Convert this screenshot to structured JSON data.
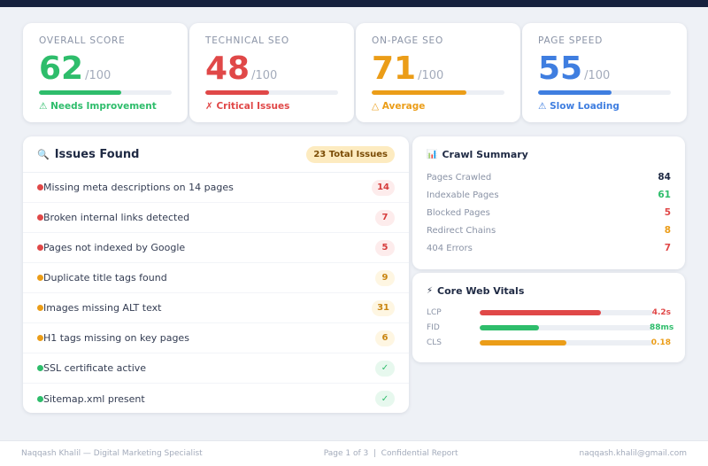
{
  "scores": [
    {
      "title": "OVERALL SCORE",
      "value": "62",
      "max": "/100",
      "progress": 0.62,
      "status": "⚠ Needs Improvement",
      "color": "#2ebd6b"
    },
    {
      "title": "TECHNICAL SEO",
      "value": "48",
      "max": "/100",
      "progress": 0.48,
      "status": "✗ Critical Issues",
      "color": "#e04848"
    },
    {
      "title": "ON-PAGE SEO",
      "value": "71",
      "max": "/100",
      "progress": 0.71,
      "status": "△ Average",
      "color": "#eb9d18"
    },
    {
      "title": "PAGE SPEED",
      "value": "55",
      "max": "/100",
      "progress": 0.55,
      "status": "⚠ Slow Loading",
      "color": "#3f7ee0"
    }
  ],
  "issues": {
    "icon": "magnifier-icon",
    "icon_glyph": "🔍",
    "title": "Issues Found",
    "total_badge": "23 Total Issues",
    "items": [
      {
        "text": "Missing meta descriptions on 14 pages",
        "count": "14",
        "severity": "critical"
      },
      {
        "text": "Broken internal links detected",
        "count": "7",
        "severity": "critical"
      },
      {
        "text": "Pages not indexed by Google",
        "count": "5",
        "severity": "critical"
      },
      {
        "text": "Duplicate title tags found",
        "count": "9",
        "severity": "warning"
      },
      {
        "text": "Images missing ALT text",
        "count": "31",
        "severity": "warning"
      },
      {
        "text": "H1 tags missing on key pages",
        "count": "6",
        "severity": "warning"
      },
      {
        "text": "SSL certificate active",
        "count": "✓",
        "severity": "ok"
      },
      {
        "text": "Sitemap.xml present",
        "count": "✓",
        "severity": "ok"
      }
    ]
  },
  "severity_colors": {
    "critical": {
      "dot": "#e04848",
      "text": "#d63c3c",
      "bg": "#fdecec"
    },
    "warning": {
      "dot": "#eb9d18",
      "text": "#c98510",
      "bg": "#fef6e2"
    },
    "ok": {
      "dot": "#2ebd6b",
      "text": "#2ebd6b",
      "bg": "#e7f8ee"
    }
  },
  "crawl": {
    "icon": "bar-chart-icon",
    "icon_glyph": "📊",
    "title": "Crawl Summary",
    "rows": [
      {
        "label": "Pages Crawled",
        "value": "84",
        "color": "#1f2a44"
      },
      {
        "label": "Indexable Pages",
        "value": "61",
        "color": "#2ebd6b"
      },
      {
        "label": "Blocked Pages",
        "value": "5",
        "color": "#e04848"
      },
      {
        "label": "Redirect Chains",
        "value": "8",
        "color": "#eb9d18"
      },
      {
        "label": "404 Errors",
        "value": "7",
        "color": "#e04848"
      }
    ]
  },
  "vitals": {
    "icon": "lightning-icon",
    "icon_glyph": "⚡",
    "title": "Core Web Vitals",
    "rows": [
      {
        "label": "LCP",
        "value": "4.2s",
        "progress": 0.7,
        "color": "#e04848"
      },
      {
        "label": "FID",
        "value": "88ms",
        "progress": 0.34,
        "color": "#2ebd6b"
      },
      {
        "label": "CLS",
        "value": "0.18",
        "progress": 0.5,
        "color": "#eb9d18"
      }
    ]
  },
  "footer": {
    "left": "Naqqash Khalil — Digital Marketing Specialist",
    "center": "Page 1 of 3  |  Confidential Report",
    "right": "naqqash.khalil@gmail.com"
  }
}
